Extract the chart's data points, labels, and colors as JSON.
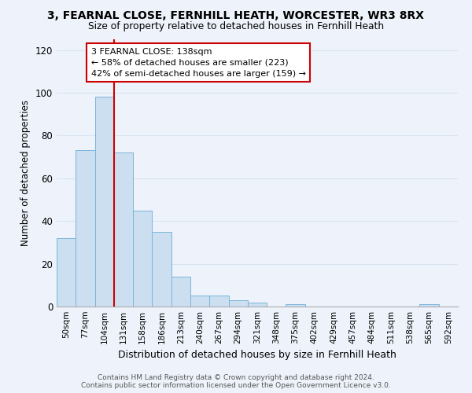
{
  "title1": "3, FEARNAL CLOSE, FERNHILL HEATH, WORCESTER, WR3 8RX",
  "title2": "Size of property relative to detached houses in Fernhill Heath",
  "xlabel": "Distribution of detached houses by size in Fernhill Heath",
  "ylabel": "Number of detached properties",
  "bar_color": "#ccdff0",
  "bar_edge_color": "#7ab4d8",
  "categories": [
    "50sqm",
    "77sqm",
    "104sqm",
    "131sqm",
    "158sqm",
    "186sqm",
    "213sqm",
    "240sqm",
    "267sqm",
    "294sqm",
    "321sqm",
    "348sqm",
    "375sqm",
    "402sqm",
    "429sqm",
    "457sqm",
    "484sqm",
    "511sqm",
    "538sqm",
    "565sqm",
    "592sqm"
  ],
  "values": [
    32,
    73,
    98,
    72,
    45,
    35,
    14,
    5,
    5,
    3,
    2,
    0,
    1,
    0,
    0,
    0,
    0,
    0,
    0,
    1,
    0
  ],
  "vline_color": "#cc0000",
  "annotation_box_text": "3 FEARNAL CLOSE: 138sqm\n← 58% of detached houses are smaller (223)\n42% of semi-detached houses are larger (159) →",
  "ylim": [
    0,
    125
  ],
  "yticks": [
    0,
    20,
    40,
    60,
    80,
    100,
    120
  ],
  "footer_text": "Contains HM Land Registry data © Crown copyright and database right 2024.\nContains public sector information licensed under the Open Government Licence v3.0.",
  "background_color": "#eef3fb",
  "grid_color": "#d8e4f0"
}
